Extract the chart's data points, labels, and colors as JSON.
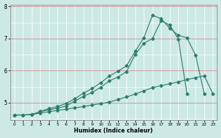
{
  "xlabel": "Humidex (Indice chaleur)",
  "background_color": "#cce9e5",
  "line_color": "#2e7d6e",
  "x_values": [
    0,
    1,
    2,
    3,
    4,
    5,
    6,
    7,
    8,
    9,
    10,
    11,
    12,
    13,
    14,
    15,
    16,
    17,
    18,
    19,
    20,
    21,
    22,
    23
  ],
  "series1_y": [
    4.62,
    4.62,
    4.63,
    4.68,
    4.72,
    4.76,
    4.8,
    4.84,
    4.88,
    4.93,
    4.97,
    5.02,
    5.1,
    5.18,
    5.27,
    5.37,
    5.47,
    5.53,
    5.59,
    5.65,
    5.72,
    5.78,
    5.84,
    5.28
  ],
  "series2_x": [
    0,
    1,
    2,
    3,
    4,
    5,
    6,
    7,
    8,
    9,
    10,
    11,
    12,
    13,
    14,
    15,
    16,
    17,
    18,
    19,
    20
  ],
  "series2_y": [
    4.62,
    4.62,
    4.63,
    4.72,
    4.78,
    4.83,
    4.9,
    5.05,
    5.2,
    5.32,
    5.48,
    5.68,
    5.8,
    5.97,
    6.5,
    6.85,
    7.0,
    7.55,
    7.42,
    6.98,
    5.28
  ],
  "series3_x": [
    0,
    1,
    2,
    3,
    4,
    5,
    6,
    7,
    8,
    9,
    10,
    11,
    12,
    13,
    14,
    15,
    16,
    17,
    18,
    19,
    20,
    21,
    22
  ],
  "series3_y": [
    4.62,
    4.62,
    4.63,
    4.73,
    4.82,
    4.88,
    4.98,
    5.12,
    5.3,
    5.44,
    5.62,
    5.83,
    5.98,
    6.15,
    6.6,
    7.02,
    7.72,
    7.62,
    7.32,
    7.1,
    7.02,
    6.48,
    5.28
  ],
  "ylim": [
    4.45,
    8.05
  ],
  "xlim": [
    -0.5,
    23.5
  ],
  "yticks": [
    5,
    6,
    7,
    8
  ],
  "xticks": [
    0,
    1,
    2,
    3,
    4,
    5,
    6,
    7,
    8,
    9,
    10,
    11,
    12,
    13,
    14,
    15,
    16,
    17,
    18,
    19,
    20,
    21,
    22,
    23
  ],
  "red_hlines": [
    5,
    6,
    7,
    8
  ],
  "white_vlines": [
    0,
    1,
    2,
    3,
    4,
    5,
    6,
    7,
    8,
    9,
    10,
    11,
    12,
    13,
    14,
    15,
    16,
    17,
    18,
    19,
    20,
    21,
    22,
    23
  ],
  "white_hlines": [
    4.5,
    5.5,
    6.5,
    7.5
  ]
}
